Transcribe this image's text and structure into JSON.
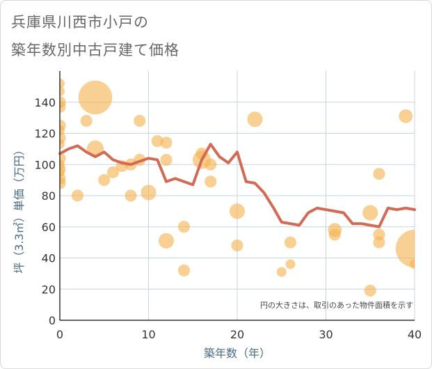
{
  "chart_data": {
    "type": "scatter",
    "title_line1": "兵庫県川西市小戸の",
    "title_line2": "築年数別中古戸建て価格",
    "xlabel": "築年数（年）",
    "ylabel": "坪（3.3㎡）単価（万円）",
    "note": "円の大きさは、取引のあった物件面積を示す",
    "xlim": [
      0,
      40
    ],
    "ylim": [
      0,
      160
    ],
    "x_ticks": [
      0,
      10,
      20,
      30,
      40
    ],
    "y_ticks": [
      0,
      20,
      40,
      60,
      80,
      100,
      120,
      140
    ],
    "colors": {
      "bubble": "#f5b14c",
      "line": "#d26a55",
      "grid": "#c5d3e0",
      "plot_bg": "#ffffff"
    },
    "bubbles": [
      {
        "x": 0,
        "y": 152,
        "size": 2
      },
      {
        "x": 0,
        "y": 147,
        "size": 2
      },
      {
        "x": 0,
        "y": 140,
        "size": 3
      },
      {
        "x": 0,
        "y": 137,
        "size": 3
      },
      {
        "x": 0,
        "y": 125,
        "size": 3
      },
      {
        "x": 0,
        "y": 122,
        "size": 2
      },
      {
        "x": 0,
        "y": 117,
        "size": 3
      },
      {
        "x": 0,
        "y": 113,
        "size": 2
      },
      {
        "x": 0,
        "y": 104,
        "size": 3
      },
      {
        "x": 0,
        "y": 100,
        "size": 2
      },
      {
        "x": 0,
        "y": 97,
        "size": 3
      },
      {
        "x": 0,
        "y": 95,
        "size": 2
      },
      {
        "x": 0,
        "y": 91,
        "size": 3
      },
      {
        "x": 0,
        "y": 88,
        "size": 3
      },
      {
        "x": 2,
        "y": 80,
        "size": 3
      },
      {
        "x": 3,
        "y": 128,
        "size": 3
      },
      {
        "x": 4,
        "y": 143,
        "size": 24
      },
      {
        "x": 4,
        "y": 110,
        "size": 6
      },
      {
        "x": 5,
        "y": 90,
        "size": 3
      },
      {
        "x": 6,
        "y": 95,
        "size": 3
      },
      {
        "x": 7,
        "y": 99,
        "size": 3
      },
      {
        "x": 8,
        "y": 100,
        "size": 3
      },
      {
        "x": 8,
        "y": 80,
        "size": 3
      },
      {
        "x": 9,
        "y": 128,
        "size": 3
      },
      {
        "x": 9,
        "y": 103,
        "size": 3
      },
      {
        "x": 10,
        "y": 82,
        "size": 5
      },
      {
        "x": 11,
        "y": 115,
        "size": 3
      },
      {
        "x": 12,
        "y": 114,
        "size": 3
      },
      {
        "x": 12,
        "y": 103,
        "size": 3
      },
      {
        "x": 12,
        "y": 51,
        "size": 5
      },
      {
        "x": 14,
        "y": 60,
        "size": 3
      },
      {
        "x": 14,
        "y": 32,
        "size": 3
      },
      {
        "x": 16,
        "y": 107,
        "size": 3
      },
      {
        "x": 16,
        "y": 103,
        "size": 7
      },
      {
        "x": 17,
        "y": 100,
        "size": 3
      },
      {
        "x": 17,
        "y": 89,
        "size": 3
      },
      {
        "x": 20,
        "y": 70,
        "size": 5
      },
      {
        "x": 20,
        "y": 48,
        "size": 3
      },
      {
        "x": 22,
        "y": 129,
        "size": 5
      },
      {
        "x": 25,
        "y": 31,
        "size": 2
      },
      {
        "x": 26,
        "y": 50,
        "size": 3
      },
      {
        "x": 26,
        "y": 36,
        "size": 2
      },
      {
        "x": 31,
        "y": 58,
        "size": 4
      },
      {
        "x": 31,
        "y": 55,
        "size": 3
      },
      {
        "x": 35,
        "y": 69,
        "size": 5
      },
      {
        "x": 35,
        "y": 19,
        "size": 3
      },
      {
        "x": 36,
        "y": 94,
        "size": 3
      },
      {
        "x": 36,
        "y": 55,
        "size": 3
      },
      {
        "x": 36,
        "y": 50,
        "size": 3
      },
      {
        "x": 39,
        "y": 131,
        "size": 4
      },
      {
        "x": 40,
        "y": 46,
        "size": 30
      },
      {
        "x": 40,
        "y": 36,
        "size": 2
      }
    ],
    "trend": {
      "x": [
        0,
        1,
        2,
        3,
        4,
        5,
        6,
        7,
        8,
        9,
        10,
        11,
        12,
        13,
        14,
        15,
        16,
        17,
        18,
        19,
        20,
        21,
        22,
        23,
        24,
        25,
        26,
        27,
        28,
        29,
        30,
        31,
        32,
        33,
        34,
        35,
        36,
        37,
        38,
        39,
        40
      ],
      "y": [
        107,
        110,
        112,
        108,
        105,
        108,
        103,
        101,
        100,
        102,
        104,
        103,
        89,
        91,
        89,
        87,
        103,
        113,
        105,
        101,
        108,
        89,
        88,
        82,
        73,
        63,
        62,
        61,
        69,
        72,
        71,
        70,
        69,
        62,
        62,
        61,
        60,
        72,
        71,
        72,
        71
      ]
    }
  }
}
